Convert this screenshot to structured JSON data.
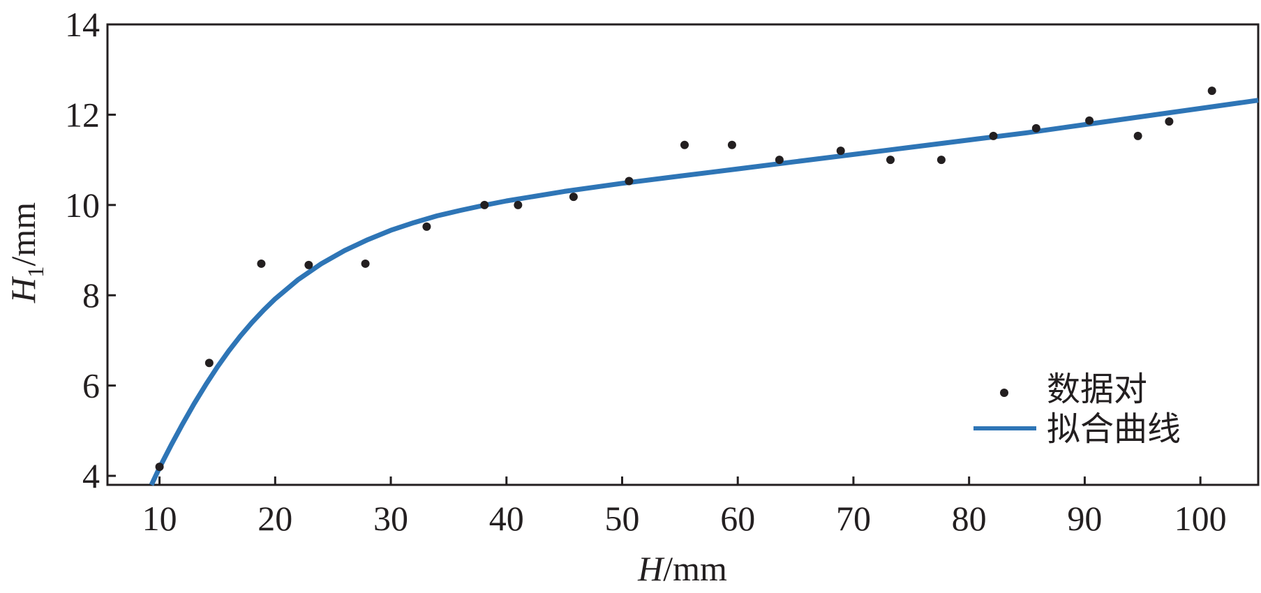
{
  "chart_data": {
    "type": "scatter",
    "title": "",
    "xlabel": {
      "var": "H",
      "unit": "/mm"
    },
    "ylabel": {
      "var": "H",
      "sub": "1",
      "unit": "/mm"
    },
    "xlim": [
      5.5,
      105
    ],
    "ylim": [
      3.8,
      14
    ],
    "xticks": [
      10,
      20,
      30,
      40,
      50,
      60,
      70,
      80,
      90,
      100
    ],
    "yticks": [
      4,
      6,
      8,
      10,
      12,
      14
    ],
    "grid": false,
    "legend_position": "bottom-right",
    "series": [
      {
        "name": "数据对",
        "kind": "points",
        "color": "#231f20",
        "x": [
          10,
          14.3,
          18.8,
          22.9,
          27.8,
          33.1,
          38.1,
          41,
          45.8,
          50.6,
          55.4,
          59.5,
          63.6,
          68.9,
          73.2,
          77.6,
          82.1,
          85.8,
          90.4,
          94.6,
          97.3,
          101
        ],
        "y": [
          4.2,
          6.5,
          8.7,
          8.67,
          8.7,
          9.52,
          10,
          10,
          10.18,
          10.53,
          11.33,
          11.33,
          11,
          11.2,
          11,
          11,
          11.53,
          11.7,
          11.87,
          11.53,
          11.85,
          12.53
        ]
      },
      {
        "name": "拟合曲线",
        "kind": "line",
        "color": "#2e75b6",
        "x": [
          9.3,
          10,
          11,
          12,
          13,
          14,
          15,
          16,
          17,
          18,
          19,
          20,
          22,
          24,
          26,
          28,
          30,
          32,
          34,
          36,
          38,
          40,
          45,
          50,
          55,
          60,
          65,
          70,
          75,
          80,
          85,
          90,
          95,
          100,
          105
        ],
        "y": [
          3.8,
          4.18,
          4.68,
          5.15,
          5.6,
          6.02,
          6.41,
          6.77,
          7.1,
          7.4,
          7.67,
          7.92,
          8.35,
          8.7,
          8.99,
          9.23,
          9.44,
          9.61,
          9.76,
          9.88,
          9.99,
          10.09,
          10.3,
          10.48,
          10.64,
          10.8,
          10.96,
          11.12,
          11.28,
          11.44,
          11.6,
          11.78,
          11.96,
          12.14,
          12.32
        ]
      }
    ]
  }
}
